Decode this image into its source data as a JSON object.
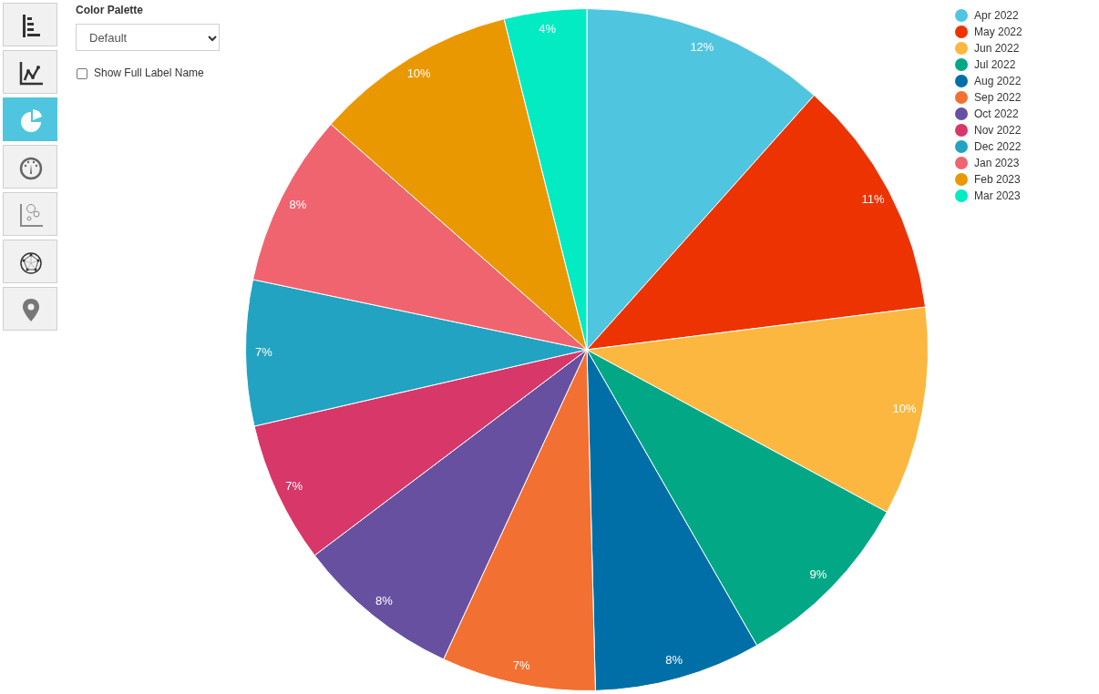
{
  "chart_data": {
    "type": "pie",
    "categories": [
      "Apr 2022",
      "May 2022",
      "Jun 2022",
      "Jul 2022",
      "Aug 2022",
      "Sep 2022",
      "Oct 2022",
      "Nov 2022",
      "Dec 2022",
      "Jan 2023",
      "Feb 2023",
      "Mar 2023"
    ],
    "values": [
      11.6,
      11.4,
      9.9,
      8.8,
      7.9,
      7.3,
      7.8,
      6.7,
      6.9,
      8.2,
      9.6,
      3.9
    ],
    "value_labels": [
      "12%",
      "11%",
      "10%",
      "9%",
      "8%",
      "7%",
      "8%",
      "7%",
      "7%",
      "8%",
      "10%",
      "4%"
    ],
    "colors": [
      "#4fc5df",
      "#ee3302",
      "#fbb73f",
      "#02a886",
      "#006fa8",
      "#f27031",
      "#6850a1",
      "#d73769",
      "#21a3c1",
      "#f06470",
      "#e99801",
      "#02ebc2"
    ],
    "legend": "top right",
    "annotations": [
      "Color Palette",
      "Default",
      "Show Full Label Name"
    ]
  }
}
